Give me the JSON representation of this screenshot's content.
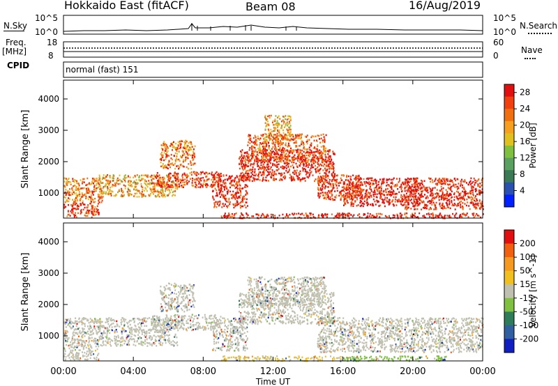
{
  "header": {
    "title": "Hokkaido East (fitACF)",
    "beam": "Beam 08",
    "date": "16/Aug/2019"
  },
  "strip_labels": {
    "nsky": "N.Sky",
    "nsky_ticks": [
      "10^5",
      "10^0"
    ],
    "nsearch": "N.Search",
    "nsearch_ticks": [
      "10^5",
      "10^0"
    ],
    "freq": "Freq.",
    "freq_unit": "[MHz]",
    "freq_ticks": [
      "18",
      "8"
    ],
    "nave": "Nave",
    "nave_ticks": [
      "60",
      "0"
    ],
    "cpid": "CPID",
    "cpid_value": "normal (fast) 151"
  },
  "chart_data": [
    {
      "type": "heatmap",
      "title": "",
      "xlabel": "Time UT",
      "ylabel": "Slant Range [km]",
      "x_ticks": [
        "00:00",
        "04:00",
        "08:00",
        "12:00",
        "16:00",
        "20:00",
        "00:00"
      ],
      "xlim": [
        0,
        24
      ],
      "y_ticks": [
        1000,
        2000,
        3000,
        4000
      ],
      "ylim": [
        200,
        4600
      ],
      "colorbar": {
        "label": "Power [dB]",
        "ticks": [
          4,
          8,
          12,
          16,
          20,
          24,
          28
        ],
        "range": [
          0,
          30
        ],
        "colors": [
          "#0020ff",
          "#2a50b0",
          "#3a7a55",
          "#5aa060",
          "#80c040",
          "#e0c020",
          "#f5a020",
          "#f07010",
          "#f04010",
          "#e01010"
        ]
      },
      "regions": [
        {
          "x": [
            0.0,
            2.0
          ],
          "y": [
            250,
            700
          ],
          "value": 26
        },
        {
          "x": [
            0.0,
            2.2
          ],
          "y": [
            700,
            1500
          ],
          "value": 22
        },
        {
          "x": [
            2.0,
            6.5
          ],
          "y": [
            900,
            1600
          ],
          "value": 20
        },
        {
          "x": [
            5.0,
            9.0
          ],
          "y": [
            1200,
            1700
          ],
          "value": 26
        },
        {
          "x": [
            5.5,
            7.5
          ],
          "y": [
            1800,
            2700
          ],
          "value": 22
        },
        {
          "x": [
            8.5,
            10.5
          ],
          "y": [
            550,
            1600
          ],
          "value": 28
        },
        {
          "x": [
            10.0,
            15.5
          ],
          "y": [
            1400,
            2400
          ],
          "value": 28
        },
        {
          "x": [
            10.5,
            15.0
          ],
          "y": [
            2000,
            2900
          ],
          "value": 24
        },
        {
          "x": [
            11.5,
            13.0
          ],
          "y": [
            2700,
            3500
          ],
          "value": 20
        },
        {
          "x": [
            14.5,
            17.0
          ],
          "y": [
            800,
            1600
          ],
          "value": 26
        },
        {
          "x": [
            16.0,
            20.5
          ],
          "y": [
            600,
            1500
          ],
          "value": 28
        },
        {
          "x": [
            19.5,
            24.0
          ],
          "y": [
            500,
            1500
          ],
          "value": 28
        },
        {
          "x": [
            9.0,
            24.0
          ],
          "y": [
            220,
            380
          ],
          "value": 28
        }
      ]
    },
    {
      "type": "heatmap",
      "title": "",
      "xlabel": "Time UT",
      "ylabel": "Slant Range [km]",
      "x_ticks": [
        "00:00",
        "04:00",
        "08:00",
        "12:00",
        "16:00",
        "20:00",
        "00:00"
      ],
      "xlim": [
        0,
        24
      ],
      "y_ticks": [
        1000,
        2000,
        3000,
        4000
      ],
      "ylim": [
        200,
        4600
      ],
      "colorbar": {
        "label": "Velocity [m s^-1]",
        "ticks": [
          200,
          100,
          50,
          15,
          -15,
          -50,
          -100,
          -200
        ],
        "range": [
          -250,
          250
        ],
        "colors": [
          "#1020c0",
          "#3060a0",
          "#2e7c5a",
          "#80c040",
          "#c0c0b0",
          "#f0c020",
          "#f59a20",
          "#f06010",
          "#e01010"
        ]
      },
      "regions": [
        {
          "x": [
            0.0,
            2.0
          ],
          "y": [
            250,
            700
          ],
          "value": 0
        },
        {
          "x": [
            0.0,
            6.5
          ],
          "y": [
            700,
            1600
          ],
          "value": 0
        },
        {
          "x": [
            5.0,
            9.0
          ],
          "y": [
            1200,
            1700
          ],
          "value": 0
        },
        {
          "x": [
            5.5,
            7.5
          ],
          "y": [
            1800,
            2700
          ],
          "value": 0
        },
        {
          "x": [
            8.5,
            10.5
          ],
          "y": [
            550,
            1600
          ],
          "value": 0
        },
        {
          "x": [
            10.0,
            15.5
          ],
          "y": [
            1400,
            2400
          ],
          "value": 0
        },
        {
          "x": [
            10.5,
            15.0
          ],
          "y": [
            2000,
            2900
          ],
          "value": 0
        },
        {
          "x": [
            14.5,
            24.0
          ],
          "y": [
            500,
            1600
          ],
          "value": 0
        },
        {
          "x": [
            9.0,
            16.0
          ],
          "y": [
            220,
            380
          ],
          "value": 30
        },
        {
          "x": [
            16.0,
            22.0
          ],
          "y": [
            220,
            380
          ],
          "value": -60
        }
      ]
    }
  ]
}
